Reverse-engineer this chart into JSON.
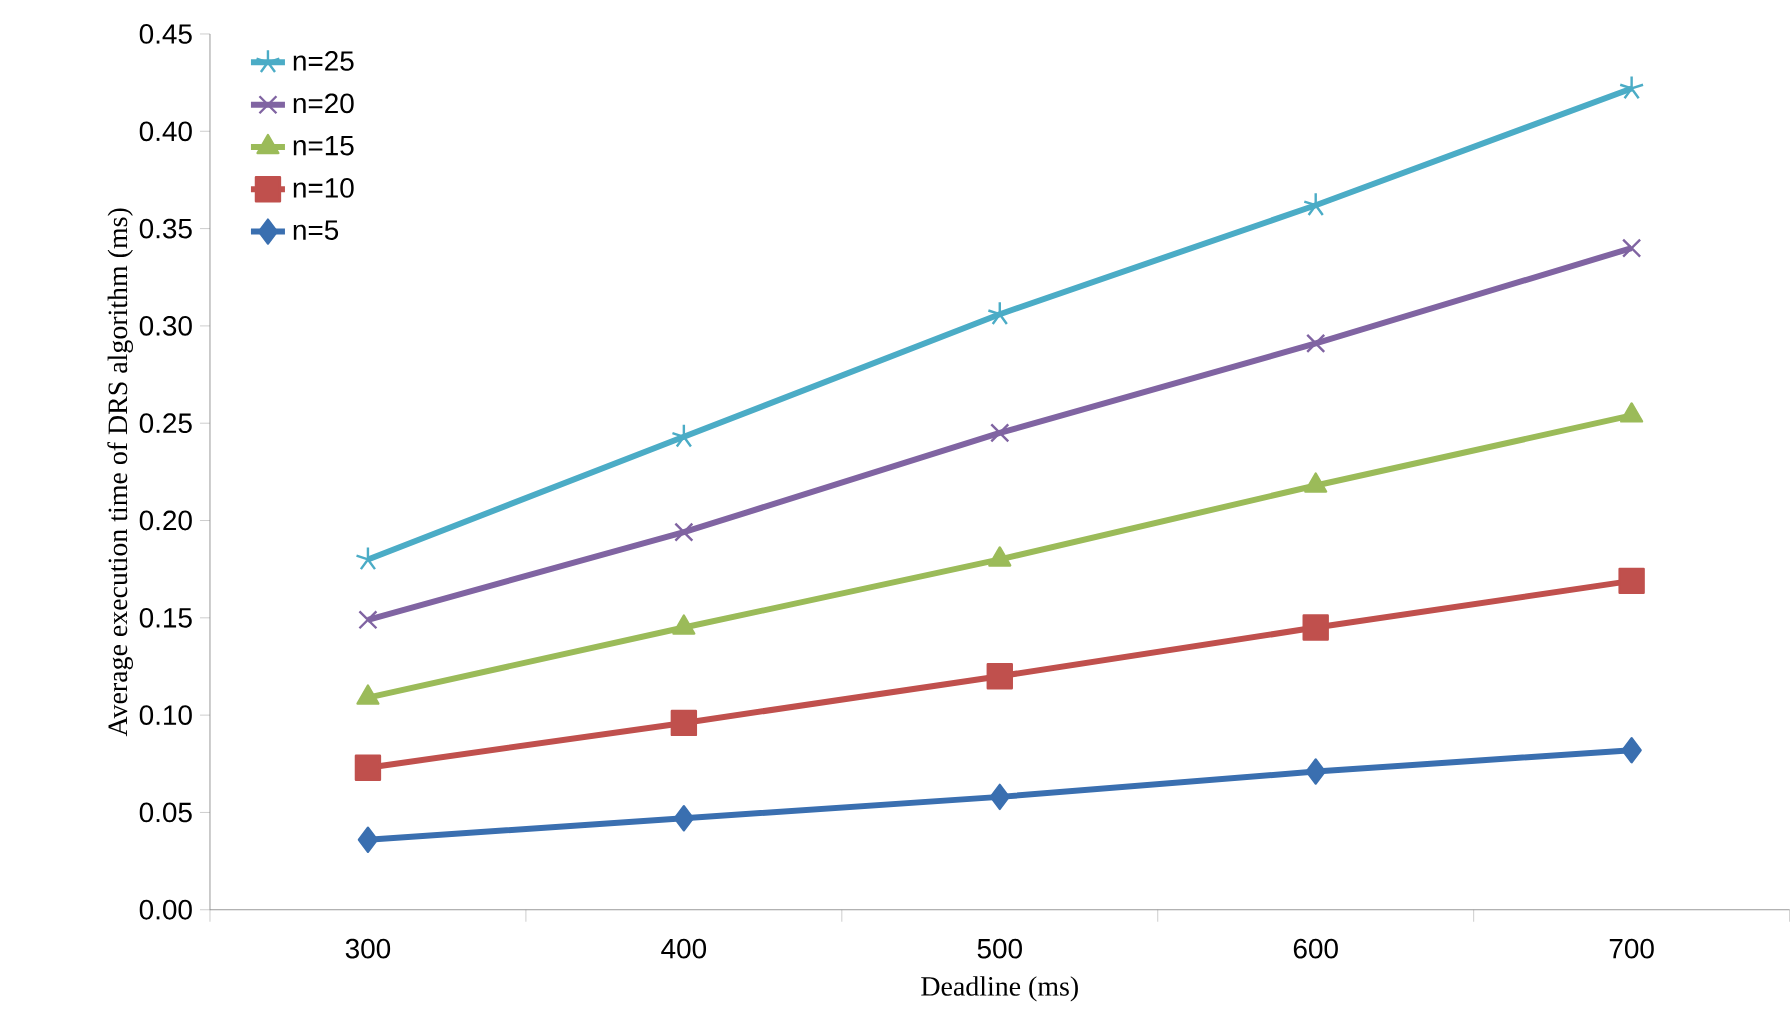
{
  "chart_data": {
    "type": "line",
    "xlabel": "Deadline (ms)",
    "ylabel": "Average execution time of DRS algorithm (ms)",
    "categories": [
      "300",
      "400",
      "500",
      "600",
      "700"
    ],
    "ylim": [
      0,
      0.45
    ],
    "yticks": [
      {
        "value": 0,
        "label": "0.00"
      },
      {
        "value": 0.05,
        "label": "0.05"
      },
      {
        "value": 0.1,
        "label": "0.10"
      },
      {
        "value": 0.15,
        "label": "0.15"
      },
      {
        "value": 0.2,
        "label": "0.20"
      },
      {
        "value": 0.25,
        "label": "0.25"
      },
      {
        "value": 0.3,
        "label": "0.30"
      },
      {
        "value": 0.35,
        "label": "0.35"
      },
      {
        "value": 0.4,
        "label": "0.40"
      },
      {
        "value": 0.45,
        "label": "0.45"
      }
    ],
    "grid": false,
    "legend": "top left",
    "line_style": "solid",
    "series": [
      {
        "name": "n=25",
        "color": "#4bacc6",
        "marker": "cross",
        "values": [
          0.18,
          0.243,
          0.306,
          0.362,
          0.422
        ]
      },
      {
        "name": "n=20",
        "color": "#8064a2",
        "marker": "cross",
        "values": [
          0.149,
          0.194,
          0.245,
          0.291,
          0.34
        ]
      },
      {
        "name": "n=15",
        "color": "#9bbb59",
        "marker": "triangle",
        "values": [
          0.109,
          0.145,
          0.18,
          0.218,
          0.254
        ]
      },
      {
        "name": "n=10",
        "color": "#c0504d",
        "marker": "square",
        "values": [
          0.073,
          0.096,
          0.12,
          0.145,
          0.169
        ]
      },
      {
        "name": "n=5",
        "color": "#3a6fb0",
        "marker": "diamond",
        "values": [
          0.036,
          0.047,
          0.058,
          0.071,
          0.082
        ]
      }
    ]
  }
}
